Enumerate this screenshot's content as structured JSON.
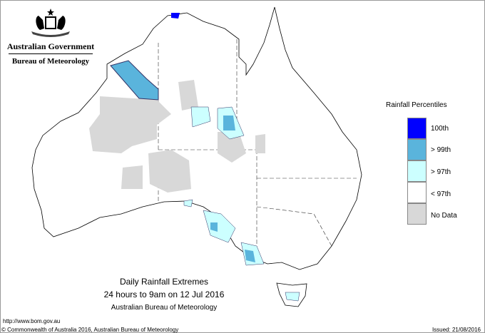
{
  "branding": {
    "government": "Australian Government",
    "bureau": "Bureau of Meteorology"
  },
  "legend": {
    "title": "Rainfall Percentiles",
    "items": [
      {
        "label": "100th",
        "color": "#0000ff"
      },
      {
        "label": "> 99th",
        "color": "#5ab4dc"
      },
      {
        "label": "> 97th",
        "color": "#ccffff"
      },
      {
        "label": "< 97th",
        "color": "#ffffff"
      },
      {
        "label": "No Data",
        "color": "#d8d8d8"
      }
    ]
  },
  "map_title": {
    "line1": "Daily Rainfall Extremes",
    "line2": "24 hours to 9am on 12 Jul 2016",
    "line3": "Australian Bureau of Meteorology"
  },
  "footer": {
    "url": "http://www.bom.gov.au",
    "copyright": "© Commonwealth of Australia 2016, Australian Bureau of Meteorology",
    "issued": "Issued: 21/08/2016"
  }
}
